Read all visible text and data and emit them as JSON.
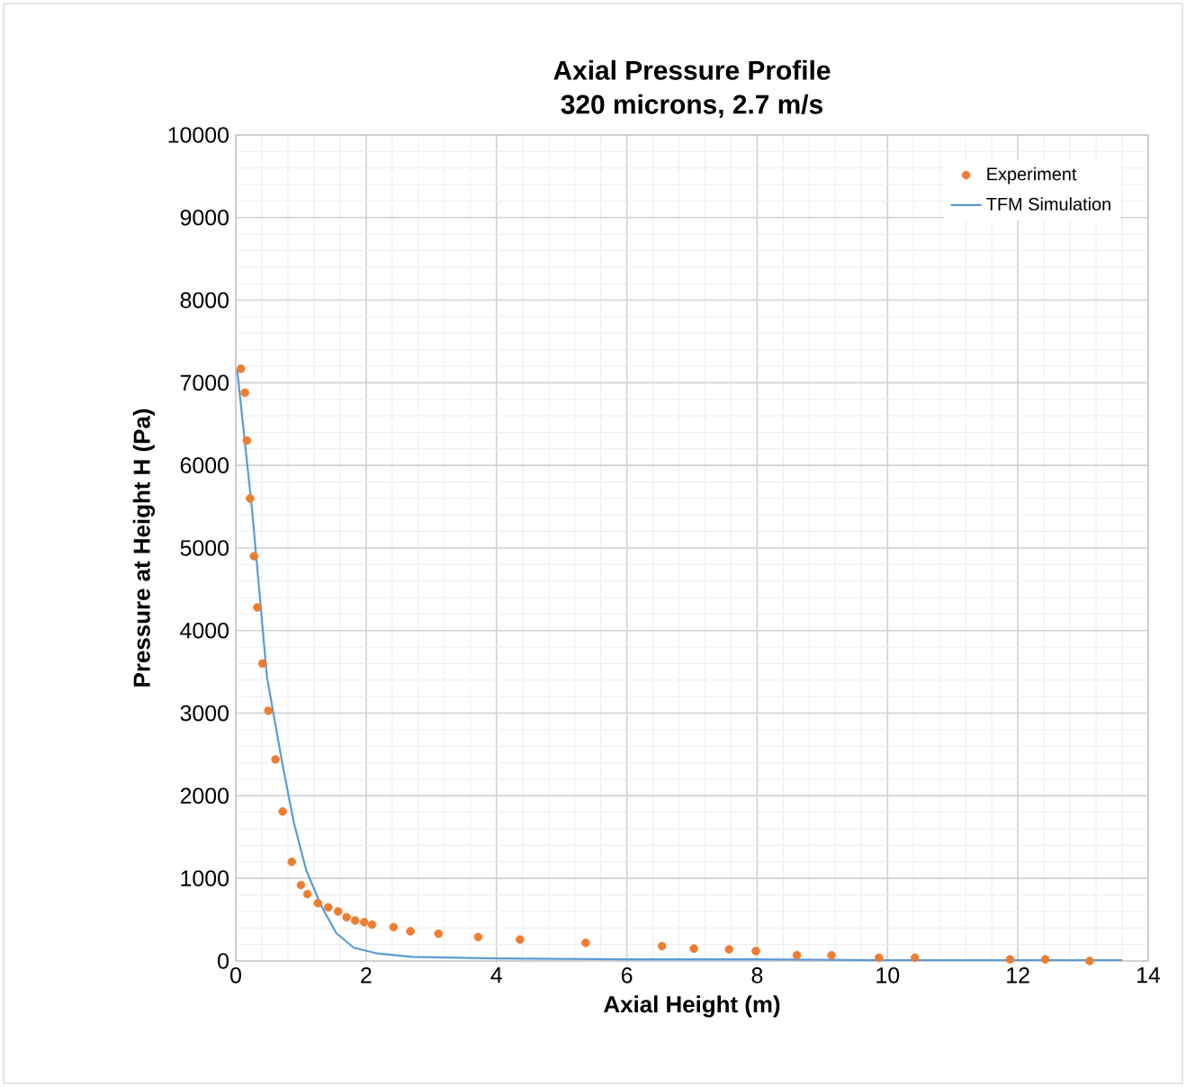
{
  "chart_data": {
    "type": "scatter",
    "title": "Axial Pressure Profile\n320 microns, 2.7 m/s",
    "xlabel": "Axial Height (m)",
    "ylabel": "Pressure at Height H (Pa)",
    "xlim": [
      0,
      14
    ],
    "ylim": [
      0,
      10000
    ],
    "xticks": [
      0,
      2,
      4,
      6,
      8,
      10,
      12,
      14
    ],
    "yticks": [
      0,
      1000,
      2000,
      3000,
      4000,
      5000,
      6000,
      7000,
      8000,
      9000,
      10000
    ],
    "grid": true,
    "legend": "top right",
    "series": [
      {
        "name": "Experiment",
        "marker": "circle",
        "color": "#ed7d31",
        "x": [
          0.08,
          0.14,
          0.17,
          0.22,
          0.28,
          0.33,
          0.41,
          0.5,
          0.61,
          0.72,
          0.86,
          1.0,
          1.1,
          1.26,
          1.42,
          1.57,
          1.7,
          1.83,
          1.97,
          2.09,
          2.42,
          2.68,
          3.11,
          3.72,
          4.36,
          5.37,
          6.54,
          7.03,
          7.57,
          7.98,
          8.61,
          9.14,
          9.87,
          10.42,
          11.88,
          12.42,
          13.1
        ],
        "values": [
          7170,
          6880,
          6300,
          5600,
          4900,
          4280,
          3600,
          3030,
          2440,
          1810,
          1200,
          920,
          810,
          700,
          650,
          600,
          530,
          490,
          470,
          440,
          410,
          360,
          330,
          290,
          260,
          220,
          180,
          150,
          140,
          120,
          70,
          70,
          40,
          40,
          20,
          20,
          0
        ]
      },
      {
        "name": "TFM Simulation",
        "type": "line",
        "marker": "none",
        "line_style": "solid",
        "color": "#5b9bd5",
        "x": [
          0.02,
          0.25,
          0.48,
          0.71,
          0.89,
          1.08,
          1.31,
          1.54,
          1.81,
          2.18,
          2.7,
          4.0,
          6.0,
          8.0,
          10.0,
          12.0,
          13.6
        ],
        "values": [
          7170,
          5460,
          3430,
          2410,
          1680,
          1100,
          670,
          340,
          160,
          90,
          50,
          30,
          20,
          20,
          10,
          10,
          10
        ]
      }
    ]
  }
}
